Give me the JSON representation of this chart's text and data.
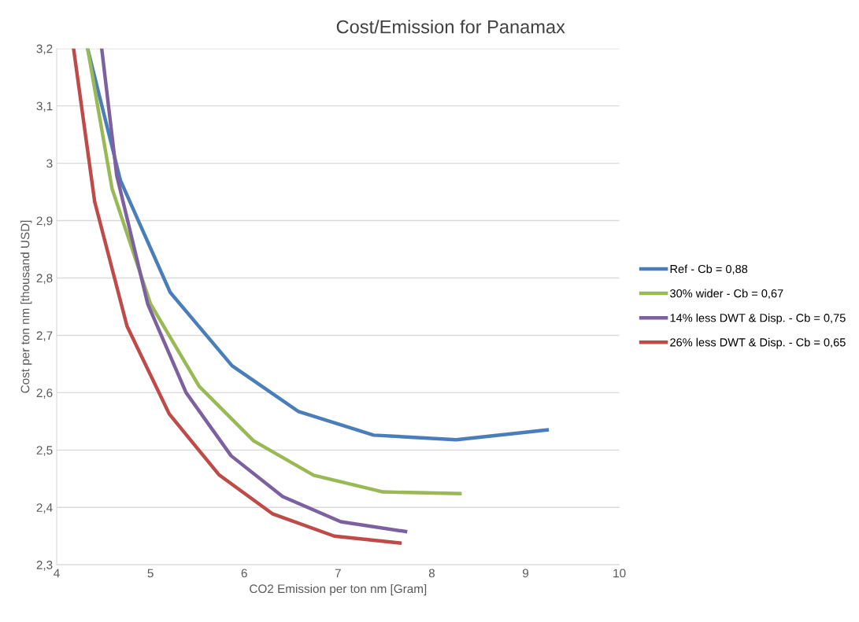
{
  "chart_data": {
    "type": "line",
    "title": "Cost/Emission for Panamax",
    "xlabel": "CO2 Emission per ton nm [Gram]",
    "ylabel": "Cost per ton nm [thousand USD]",
    "series": [
      {
        "name": "Ref - Cb = 0,88",
        "color": "#4a7ebb",
        "x": [
          4.33,
          4.68,
          5.21,
          5.87,
          6.58,
          7.38,
          8.26,
          9.23
        ],
        "values": [
          3.2,
          2.97,
          2.775,
          2.647,
          2.567,
          2.526,
          2.518,
          2.535
        ]
      },
      {
        "name": "30% wider - Cb = 0,67",
        "color": "#98b954",
        "x": [
          4.33,
          4.59,
          5.0,
          5.52,
          6.1,
          6.74,
          7.48,
          8.3
        ],
        "values": [
          3.2,
          2.956,
          2.755,
          2.611,
          2.516,
          2.456,
          2.427,
          2.424
        ]
      },
      {
        "name": "14% less DWT & Disp. - Cb = 0,75",
        "color": "#7d60a0",
        "x": [
          4.48,
          4.64,
          4.97,
          5.38,
          5.86,
          6.41,
          7.03,
          7.72
        ],
        "values": [
          3.2,
          2.979,
          2.755,
          2.6,
          2.49,
          2.419,
          2.375,
          2.358
        ]
      },
      {
        "name": "26% less DWT & Disp. - Cb = 0,65",
        "color": "#be4b48",
        "x": [
          4.18,
          4.405,
          4.75,
          5.2,
          5.73,
          6.3,
          6.96,
          7.66
        ],
        "values": [
          3.2,
          2.933,
          2.716,
          2.563,
          2.457,
          2.389,
          2.35,
          2.338
        ]
      }
    ],
    "xlim": [
      4,
      10
    ],
    "xticks": [
      4,
      5,
      6,
      7,
      8,
      9,
      10
    ],
    "ylim": [
      2.3,
      3.2
    ],
    "yticks": [
      {
        "value": 2.3,
        "label": "2,3"
      },
      {
        "value": 2.4,
        "label": "2,4"
      },
      {
        "value": 2.5,
        "label": "2,5"
      },
      {
        "value": 2.6,
        "label": "2,6"
      },
      {
        "value": 2.7,
        "label": "2,7"
      },
      {
        "value": 2.8,
        "label": "2,8"
      },
      {
        "value": 2.9,
        "label": "2,9"
      },
      {
        "value": 3.0,
        "label": "3"
      },
      {
        "value": 3.1,
        "label": "3,1"
      },
      {
        "value": 3.2,
        "label": "3,2"
      }
    ],
    "grid": "y",
    "legend": "right",
    "marker": "none",
    "line_style": "solid"
  }
}
